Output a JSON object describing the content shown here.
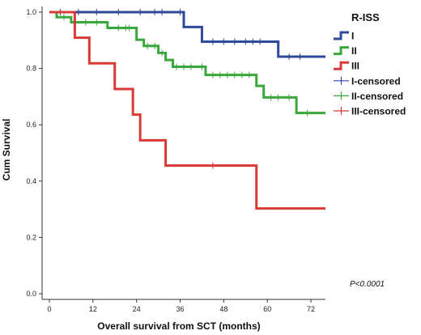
{
  "chart_data": {
    "type": "line",
    "subtype": "kaplan-meier",
    "xlabel": "Overall survival from SCT (months)",
    "ylabel": "Cum Survival",
    "xlim": [
      -2,
      76
    ],
    "ylim": [
      -0.02,
      1.02
    ],
    "x_ticks": [
      0,
      12,
      24,
      36,
      48,
      60,
      72
    ],
    "y_ticks": [
      0.0,
      0.2,
      0.4,
      0.6,
      0.8,
      1.0
    ],
    "x_tick_labels": [
      "0",
      "12",
      "24",
      "36",
      "48",
      "60",
      "72"
    ],
    "y_tick_labels": [
      "0.0",
      "0.2",
      "0.4",
      "0.6",
      "0.8",
      "1.0"
    ],
    "grid": false,
    "legend_title": "R-ISS",
    "legend_position": "right",
    "legend_entries": [
      {
        "label": "I",
        "kind": "line",
        "color": "#2f4a9a"
      },
      {
        "label": "II",
        "kind": "line",
        "color": "#3aa83a"
      },
      {
        "label": "III",
        "kind": "line",
        "color": "#d93a35"
      },
      {
        "label": "I-censored",
        "kind": "censor",
        "color": "#2f4a9a"
      },
      {
        "label": "II-censored",
        "kind": "censor",
        "color": "#3aa83a"
      },
      {
        "label": "III-censored",
        "kind": "censor",
        "color": "#d93a35"
      }
    ],
    "annotation": "P<0.0001",
    "series": [
      {
        "name": "I",
        "color": "#2f4a9a",
        "steps": [
          [
            0,
            1.0
          ],
          [
            37,
            0.947
          ],
          [
            42,
            0.895
          ],
          [
            63,
            0.842
          ],
          [
            76,
            0.842
          ]
        ],
        "censored": [
          [
            3,
            1.0
          ],
          [
            8,
            1.0
          ],
          [
            13,
            1.0
          ],
          [
            19,
            1.0
          ],
          [
            25,
            1.0
          ],
          [
            29,
            1.0
          ],
          [
            31,
            1.0
          ],
          [
            36,
            1.0
          ],
          [
            45,
            0.895
          ],
          [
            48,
            0.895
          ],
          [
            51,
            0.895
          ],
          [
            54,
            0.895
          ],
          [
            56,
            0.895
          ],
          [
            58,
            0.895
          ],
          [
            66,
            0.842
          ],
          [
            69,
            0.842
          ]
        ]
      },
      {
        "name": "II",
        "color": "#3aa83a",
        "steps": [
          [
            0,
            1.0
          ],
          [
            2,
            0.982
          ],
          [
            6,
            0.964
          ],
          [
            16,
            0.944
          ],
          [
            24,
            0.902
          ],
          [
            26,
            0.88
          ],
          [
            30,
            0.855
          ],
          [
            32,
            0.83
          ],
          [
            34,
            0.806
          ],
          [
            43,
            0.777
          ],
          [
            57,
            0.738
          ],
          [
            59,
            0.697
          ],
          [
            68,
            0.642
          ],
          [
            76,
            0.642
          ]
        ],
        "censored": [
          [
            4,
            0.982
          ],
          [
            10,
            0.964
          ],
          [
            13,
            0.964
          ],
          [
            19,
            0.944
          ],
          [
            21,
            0.944
          ],
          [
            22,
            0.944
          ],
          [
            27,
            0.88
          ],
          [
            29,
            0.88
          ],
          [
            31,
            0.855
          ],
          [
            35,
            0.806
          ],
          [
            37,
            0.806
          ],
          [
            39,
            0.806
          ],
          [
            42,
            0.806
          ],
          [
            45,
            0.777
          ],
          [
            47,
            0.777
          ],
          [
            49,
            0.777
          ],
          [
            51,
            0.777
          ],
          [
            53,
            0.777
          ],
          [
            55,
            0.777
          ],
          [
            61,
            0.697
          ],
          [
            63,
            0.697
          ],
          [
            66,
            0.697
          ],
          [
            71,
            0.642
          ]
        ]
      },
      {
        "name": "III",
        "color": "#d93a35",
        "steps": [
          [
            0,
            1.0
          ],
          [
            7,
            0.909
          ],
          [
            11,
            0.818
          ],
          [
            18,
            0.727
          ],
          [
            23,
            0.636
          ],
          [
            25,
            0.545
          ],
          [
            32,
            0.455
          ],
          [
            57,
            0.303
          ],
          [
            76,
            0.303
          ]
        ],
        "censored": [
          [
            45,
            0.455
          ]
        ]
      }
    ]
  }
}
